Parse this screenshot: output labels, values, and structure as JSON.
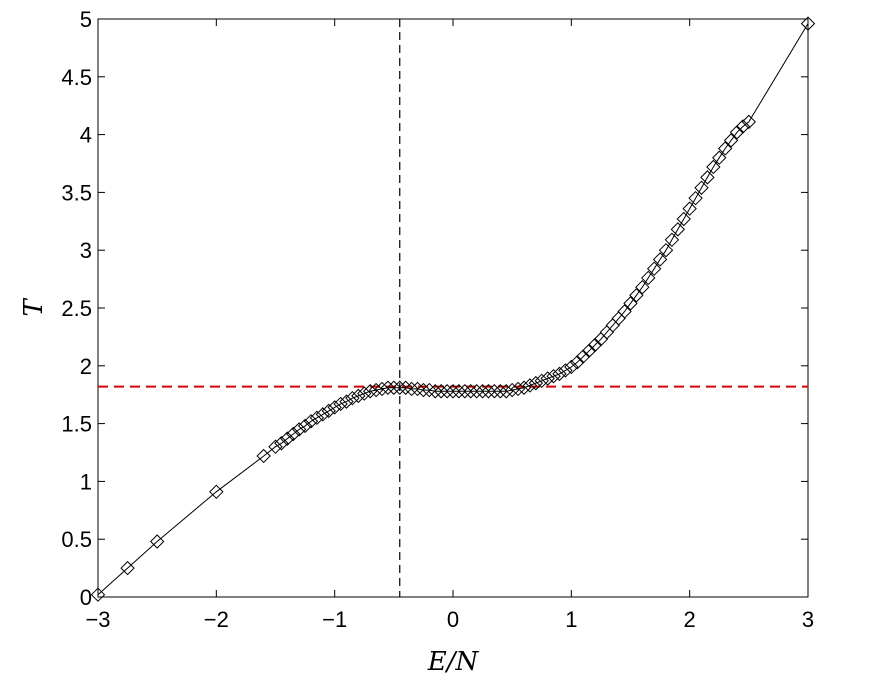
{
  "chart_data": {
    "type": "line",
    "title": "",
    "xlabel": "E/N",
    "ylabel": "T",
    "xlim": [
      -3,
      3
    ],
    "ylim": [
      0,
      5
    ],
    "xticks": [
      -3,
      -2,
      -1,
      0,
      1,
      2,
      3
    ],
    "yticks": [
      0,
      0.5,
      1,
      1.5,
      2,
      2.5,
      3,
      3.5,
      4,
      4.5,
      5
    ],
    "xtick_labels": [
      "−3",
      "−2",
      "−1",
      "0",
      "1",
      "2",
      "3"
    ],
    "ytick_labels": [
      "0",
      "0.5",
      "1",
      "1.5",
      "2",
      "2.5",
      "3",
      "3.5",
      "4",
      "4.5",
      "5"
    ],
    "grid": false,
    "series": [
      {
        "marker": "diamond",
        "line_color": "#000000",
        "x": [
          -3.0,
          -2.75,
          -2.5,
          -2.0,
          -1.6,
          -1.5,
          -1.45,
          -1.4,
          -1.35,
          -1.3,
          -1.25,
          -1.2,
          -1.15,
          -1.1,
          -1.05,
          -1.0,
          -0.95,
          -0.9,
          -0.85,
          -0.8,
          -0.75,
          -0.7,
          -0.65,
          -0.6,
          -0.55,
          -0.5,
          -0.45,
          -0.4,
          -0.35,
          -0.3,
          -0.25,
          -0.2,
          -0.15,
          -0.1,
          -0.05,
          0.0,
          0.05,
          0.1,
          0.15,
          0.2,
          0.25,
          0.3,
          0.35,
          0.4,
          0.45,
          0.5,
          0.55,
          0.6,
          0.65,
          0.7,
          0.75,
          0.8,
          0.85,
          0.9,
          0.95,
          1.0,
          1.05,
          1.1,
          1.15,
          1.2,
          1.25,
          1.3,
          1.35,
          1.4,
          1.45,
          1.5,
          1.55,
          1.6,
          1.65,
          1.7,
          1.75,
          1.8,
          1.85,
          1.9,
          1.95,
          2.0,
          2.05,
          2.1,
          2.15,
          2.2,
          2.25,
          2.3,
          2.35,
          2.4,
          2.45,
          2.5,
          3.0
        ],
        "y": [
          0.02,
          0.25,
          0.48,
          0.91,
          1.22,
          1.3,
          1.33,
          1.37,
          1.41,
          1.45,
          1.48,
          1.52,
          1.55,
          1.58,
          1.61,
          1.64,
          1.67,
          1.69,
          1.72,
          1.74,
          1.76,
          1.78,
          1.79,
          1.8,
          1.81,
          1.81,
          1.81,
          1.81,
          1.8,
          1.8,
          1.79,
          1.79,
          1.78,
          1.78,
          1.78,
          1.78,
          1.78,
          1.78,
          1.78,
          1.78,
          1.78,
          1.78,
          1.78,
          1.78,
          1.78,
          1.79,
          1.8,
          1.81,
          1.83,
          1.85,
          1.87,
          1.89,
          1.91,
          1.93,
          1.96,
          1.99,
          2.03,
          2.08,
          2.13,
          2.18,
          2.23,
          2.29,
          2.35,
          2.41,
          2.47,
          2.54,
          2.61,
          2.68,
          2.76,
          2.84,
          2.92,
          3.0,
          3.09,
          3.18,
          3.27,
          3.36,
          3.45,
          3.54,
          3.63,
          3.72,
          3.8,
          3.88,
          3.95,
          4.02,
          4.07,
          4.11,
          4.96
        ]
      }
    ],
    "reference_lines": [
      {
        "orientation": "vertical",
        "value": -0.45,
        "style": "dashed",
        "color": "#000000"
      },
      {
        "orientation": "horizontal",
        "value": 1.82,
        "style": "dashed",
        "color": "#dd0000"
      }
    ]
  }
}
